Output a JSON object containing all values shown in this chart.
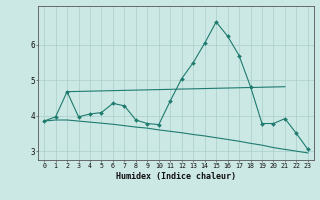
{
  "xlabel": "Humidex (Indice chaleur)",
  "background_color": "#cce8e5",
  "grid_color": "#aacfcc",
  "line_color": "#1e7b6e",
  "x_values": [
    0,
    1,
    2,
    3,
    4,
    5,
    6,
    7,
    8,
    9,
    10,
    11,
    12,
    13,
    14,
    15,
    16,
    17,
    18,
    19,
    20,
    21,
    22,
    23
  ],
  "line1": [
    3.85,
    3.97,
    4.68,
    3.97,
    4.05,
    4.09,
    4.35,
    4.28,
    3.88,
    3.78,
    3.75,
    4.42,
    5.05,
    5.5,
    6.05,
    6.65,
    6.25,
    5.7,
    4.82,
    3.78,
    3.78,
    3.92,
    3.5,
    3.05
  ],
  "line2_x": [
    2,
    21
  ],
  "line2_y": [
    4.68,
    4.82
  ],
  "line3": [
    3.85,
    3.88,
    3.88,
    3.85,
    3.82,
    3.79,
    3.76,
    3.72,
    3.68,
    3.65,
    3.6,
    3.56,
    3.52,
    3.47,
    3.43,
    3.38,
    3.33,
    3.28,
    3.22,
    3.17,
    3.1,
    3.05,
    3.0,
    2.95
  ],
  "ylim": [
    2.75,
    7.1
  ],
  "yticks": [
    3,
    4,
    5,
    6
  ],
  "xlim": [
    -0.5,
    23.5
  ]
}
